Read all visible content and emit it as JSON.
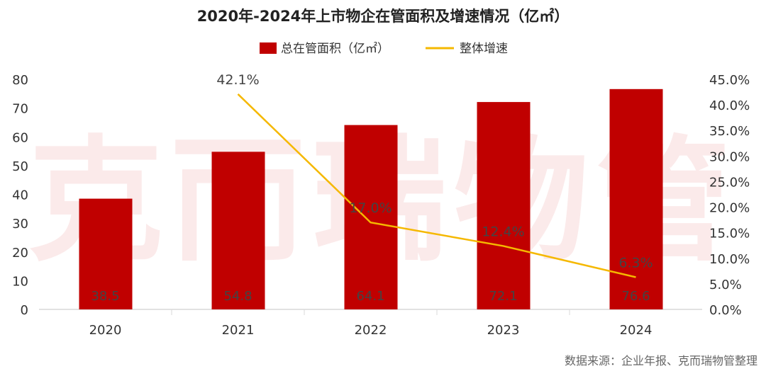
{
  "chart_data": {
    "type": "bar+line",
    "title": "2020年-2024年上市物企在管面积及增速情况（亿㎡）",
    "categories": [
      "2020",
      "2021",
      "2022",
      "2023",
      "2024"
    ],
    "series": [
      {
        "name": "总在管面积（亿㎡）",
        "type": "bar",
        "axis": "left",
        "values": [
          38.5,
          54.8,
          64.1,
          72.1,
          76.6
        ],
        "labels": [
          "38.5",
          "54.8",
          "64.1",
          "72.1",
          "76.6"
        ],
        "color": "#C00000"
      },
      {
        "name": "整体增速",
        "type": "line",
        "axis": "right",
        "values": [
          null,
          42.1,
          17.0,
          12.4,
          6.3
        ],
        "labels": [
          "",
          "42.1%",
          "17.0%",
          "12.4%",
          "6.3%"
        ],
        "color": "#F5B800"
      }
    ],
    "y_left": {
      "ylim": [
        0,
        80
      ],
      "ticks": [
        "0",
        "10",
        "20",
        "30",
        "40",
        "50",
        "60",
        "70",
        "80"
      ]
    },
    "y_right": {
      "ylim": [
        0,
        45
      ],
      "ticks": [
        "0.0%",
        "5.0%",
        "10.0%",
        "15.0%",
        "20.0%",
        "25.0%",
        "30.0%",
        "35.0%",
        "40.0%",
        "45.0%"
      ]
    },
    "grid": false,
    "legend_placement": "top"
  },
  "source": "数据来源：企业年报、克而瑞物管整理",
  "watermark": "克而瑞物管"
}
